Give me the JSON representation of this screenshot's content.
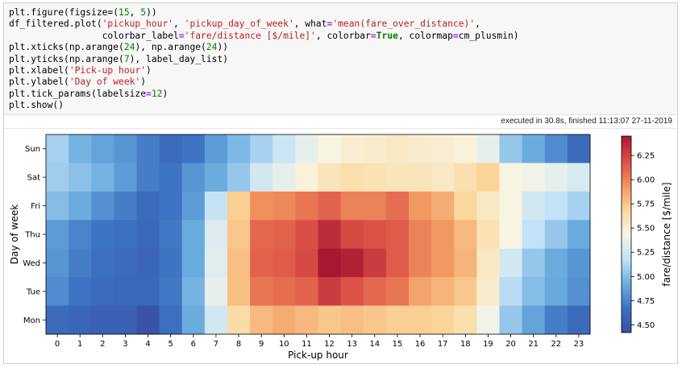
{
  "code_lines": [
    [
      {
        "t": "plt.figure(figsize=(",
        "c": ""
      },
      {
        "t": "15",
        "c": "num"
      },
      {
        "t": ", ",
        "c": ""
      },
      {
        "t": "5",
        "c": "num"
      },
      {
        "t": "))",
        "c": ""
      }
    ],
    [
      {
        "t": "df_filtered.plot(",
        "c": ""
      },
      {
        "t": "'pickup_hour'",
        "c": "str"
      },
      {
        "t": ", ",
        "c": ""
      },
      {
        "t": "'pickup_day_of_week'",
        "c": "str"
      },
      {
        "t": ", what",
        "c": ""
      },
      {
        "t": "=",
        "c": "op"
      },
      {
        "t": "'mean(fare_over_distance)'",
        "c": "str"
      },
      {
        "t": ",",
        "c": ""
      }
    ],
    [
      {
        "t": "                 colorbar_label",
        "c": ""
      },
      {
        "t": "=",
        "c": "op"
      },
      {
        "t": "'fare/distance [$/mile]'",
        "c": "str"
      },
      {
        "t": ", colorbar",
        "c": ""
      },
      {
        "t": "=",
        "c": "op"
      },
      {
        "t": "True",
        "c": "kw"
      },
      {
        "t": ", colormap",
        "c": ""
      },
      {
        "t": "=",
        "c": "op"
      },
      {
        "t": "cm_plusmin)",
        "c": ""
      }
    ],
    [
      {
        "t": "plt.xticks(np.arange(",
        "c": ""
      },
      {
        "t": "24",
        "c": "num"
      },
      {
        "t": "), np.arange(",
        "c": ""
      },
      {
        "t": "24",
        "c": "num"
      },
      {
        "t": "))",
        "c": ""
      }
    ],
    [
      {
        "t": "plt.yticks(np.arange(",
        "c": ""
      },
      {
        "t": "7",
        "c": "num"
      },
      {
        "t": "), label_day_list)",
        "c": ""
      }
    ],
    [
      {
        "t": "plt.xlabel(",
        "c": ""
      },
      {
        "t": "'Pick-up hour'",
        "c": "str"
      },
      {
        "t": ")",
        "c": ""
      }
    ],
    [
      {
        "t": "plt.ylabel(",
        "c": ""
      },
      {
        "t": "'Day of week'",
        "c": "str"
      },
      {
        "t": ")",
        "c": ""
      }
    ],
    [
      {
        "t": "plt.tick_params(labelsize",
        "c": ""
      },
      {
        "t": "=",
        "c": "op"
      },
      {
        "t": "12",
        "c": "num"
      },
      {
        "t": ")",
        "c": ""
      }
    ],
    [
      {
        "t": "plt.show()",
        "c": ""
      }
    ]
  ],
  "status": {
    "text": "executed in 30.8s, finished 11:13:07 27-11-2019"
  },
  "chart_data": {
    "type": "heatmap",
    "xlabel": "Pick-up hour",
    "ylabel": "Day of week",
    "x": [
      0,
      1,
      2,
      3,
      4,
      5,
      6,
      7,
      8,
      9,
      10,
      11,
      12,
      13,
      14,
      15,
      16,
      17,
      18,
      19,
      20,
      21,
      22,
      23
    ],
    "y": [
      "Sun",
      "Sat",
      "Fri",
      "Thu",
      "Wed",
      "Tue",
      "Mon"
    ],
    "values": [
      [
        5.1,
        4.95,
        4.88,
        4.82,
        4.72,
        4.62,
        4.68,
        4.85,
        4.98,
        5.1,
        5.22,
        5.35,
        5.45,
        5.5,
        5.52,
        5.55,
        5.52,
        5.5,
        5.48,
        5.35,
        5.05,
        4.92,
        4.78,
        4.62
      ],
      [
        5.08,
        5.02,
        4.95,
        4.85,
        4.72,
        4.68,
        4.82,
        4.92,
        5.05,
        5.25,
        5.35,
        5.48,
        5.58,
        5.62,
        5.6,
        5.58,
        5.58,
        5.55,
        5.62,
        5.7,
        5.45,
        5.4,
        5.35,
        5.28
      ],
      [
        5.0,
        4.92,
        4.8,
        4.72,
        4.62,
        4.68,
        4.85,
        5.2,
        5.72,
        5.95,
        5.98,
        6.05,
        6.12,
        6.0,
        6.0,
        6.08,
        5.92,
        5.85,
        5.68,
        5.55,
        5.45,
        5.25,
        5.18,
        5.1
      ],
      [
        4.85,
        4.75,
        4.68,
        4.65,
        4.6,
        4.7,
        4.92,
        5.3,
        5.75,
        6.1,
        6.12,
        6.2,
        6.35,
        6.22,
        6.18,
        6.15,
        6.0,
        5.92,
        5.8,
        5.6,
        5.45,
        5.18,
        5.05,
        4.92
      ],
      [
        4.82,
        4.72,
        4.65,
        4.62,
        4.58,
        4.68,
        4.92,
        5.32,
        5.78,
        6.12,
        6.15,
        6.22,
        6.45,
        6.4,
        6.28,
        6.15,
        6.0,
        5.92,
        5.82,
        5.55,
        5.25,
        5.05,
        4.92,
        4.82
      ],
      [
        4.78,
        4.68,
        4.62,
        4.6,
        4.6,
        4.7,
        4.95,
        5.35,
        5.78,
        6.05,
        6.08,
        6.12,
        6.28,
        6.18,
        6.1,
        6.05,
        5.88,
        5.82,
        5.75,
        5.52,
        5.15,
        5.0,
        4.9,
        4.8
      ],
      [
        4.62,
        4.58,
        4.55,
        4.55,
        4.45,
        4.65,
        4.92,
        5.25,
        5.65,
        5.8,
        5.85,
        5.8,
        5.75,
        5.78,
        5.75,
        5.72,
        5.72,
        5.7,
        5.62,
        5.4,
        5.05,
        4.88,
        4.72,
        4.62
      ]
    ],
    "colorbar": {
      "label": "fare/distance [$/mile]",
      "ticks": [
        "4.50",
        "4.75",
        "5.00",
        "5.25",
        "5.50",
        "5.75",
        "6.00",
        "6.25"
      ],
      "range": [
        4.42,
        6.45
      ]
    },
    "colormap": "cm_plusmin",
    "colormap_stops": [
      "#3a4fa3",
      "#3c73c2",
      "#6caee0",
      "#c2e2f7",
      "#f8f6e6",
      "#fbd79a",
      "#f1935d",
      "#dc4e45",
      "#a81632"
    ]
  }
}
